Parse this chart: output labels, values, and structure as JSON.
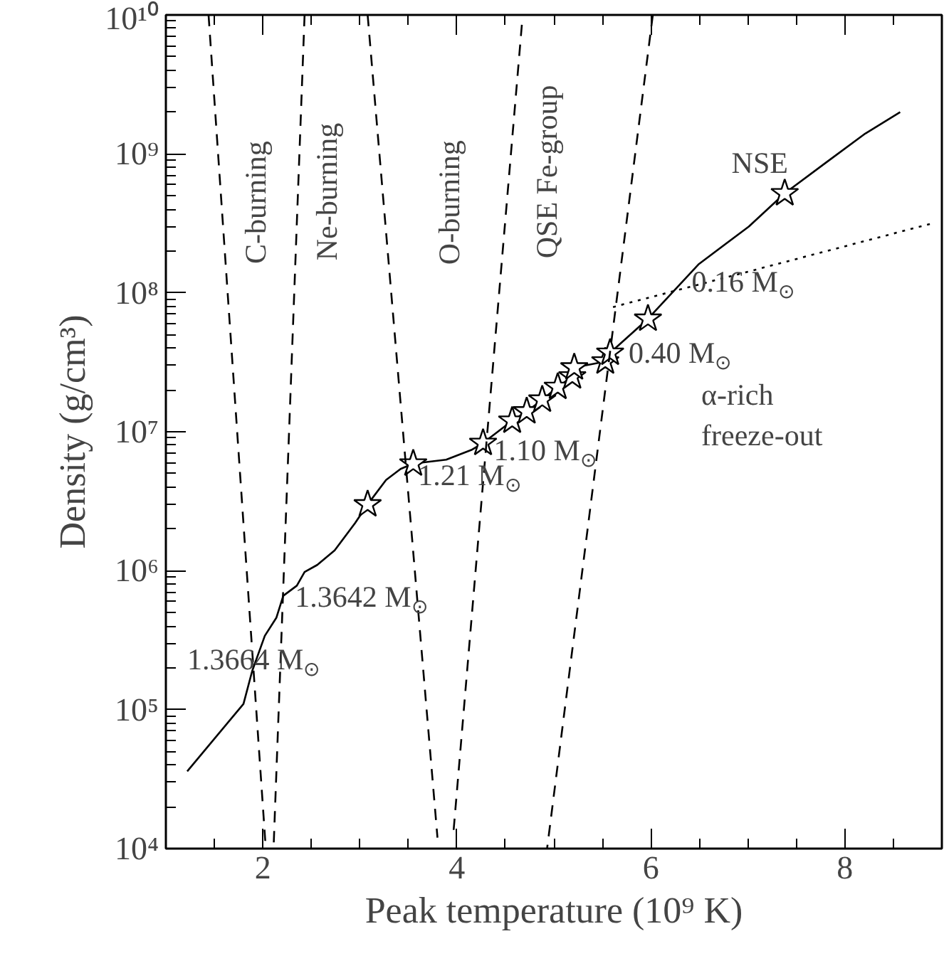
{
  "chart_data": {
    "type": "line",
    "xlabel": "Peak temperature (10⁹ K)",
    "ylabel": "Density (g/cm³)",
    "log": "y",
    "grid": false,
    "xlim": [
      1,
      9
    ],
    "xticks": [
      2,
      4,
      6,
      8
    ],
    "ylim": [
      10000,
      10000000000
    ],
    "yticks": [
      {
        "value": 10000,
        "label": "10⁴"
      },
      {
        "value": 100000,
        "label": "10⁵"
      },
      {
        "value": 1000000,
        "label": "10⁶"
      },
      {
        "value": 10000000,
        "label": "10⁷"
      },
      {
        "value": 100000000,
        "label": "10⁸"
      },
      {
        "value": 1000000000,
        "label": "10⁹"
      },
      {
        "value": 10000000000,
        "label": "10¹⁰"
      }
    ],
    "series": [
      {
        "type": "line",
        "color": "#000000",
        "line_style": "solid",
        "marker": "none",
        "x": [
          1.22,
          1.8,
          1.89,
          2.02,
          2.14,
          2.21,
          2.35,
          2.43,
          2.56,
          2.74,
          2.95,
          3.08,
          3.27,
          3.42,
          3.55,
          3.89,
          4.15,
          4.27,
          4.57,
          4.72,
          4.88,
          5.04,
          5.19,
          5.21,
          5.53,
          5.58,
          5.97,
          6.49,
          7.01,
          7.38,
          7.79,
          8.21,
          8.57
        ],
        "values": [
          36000.0,
          110000.0,
          190000.0,
          340000.0,
          460000.0,
          660000.0,
          780000.0,
          980000.0,
          1100000.0,
          1400000.0,
          2200000.0,
          3000000.0,
          4500000.0,
          5400000.0,
          5900000.0,
          6300000.0,
          7400000.0,
          8300000.0,
          12000000.0,
          14000000.0,
          17000000.0,
          21000000.0,
          25000000.0,
          29000000.0,
          32000000.0,
          37000000.0,
          65000000.0,
          160000000.0,
          300000000.0,
          520000000.0,
          850000000.0,
          1400000000.0,
          2000000000.0
        ]
      },
      {
        "type": "scatter",
        "color": "#000000",
        "marker": "star",
        "x": [
          3.08,
          3.55,
          4.27,
          4.57,
          4.72,
          4.88,
          5.04,
          5.19,
          5.21,
          5.53,
          5.58,
          5.97,
          7.38
        ],
        "values": [
          3000000.0,
          5900000.0,
          8300000.0,
          12000000.0,
          14000000.0,
          17000000.0,
          21000000.0,
          25000000.0,
          29000000.0,
          32000000.0,
          37000000.0,
          65000000.0,
          520000000.0
        ]
      },
      {
        "type": "line",
        "color": "#000000",
        "line_style": "dashed",
        "marker": "none",
        "x": [
          1.44,
          2.03
        ],
        "values": [
          10000000000.0,
          10000.0
        ]
      },
      {
        "type": "line",
        "color": "#000000",
        "line_style": "dashed",
        "marker": "none",
        "x": [
          2.43,
          2.11
        ],
        "values": [
          10000000000.0,
          10000.0
        ]
      },
      {
        "type": "line",
        "color": "#000000",
        "line_style": "dashed",
        "marker": "none",
        "x": [
          3.08,
          3.8
        ],
        "values": [
          10000000000.0,
          12000.0
        ]
      },
      {
        "type": "line",
        "color": "#000000",
        "line_style": "dashed",
        "marker": "none",
        "x": [
          4.67,
          3.96
        ],
        "values": [
          8500000000.0,
          12000.0
        ]
      },
      {
        "type": "line",
        "color": "#000000",
        "line_style": "dashed",
        "marker": "none",
        "x": [
          6.02,
          4.93
        ],
        "values": [
          10000000000.0,
          10000.0
        ]
      },
      {
        "type": "line",
        "color": "#000000",
        "line_style": "dotted",
        "marker": "none",
        "x": [
          5.61,
          8.93
        ],
        "values": [
          79000000.0,
          320000000.0
        ]
      }
    ],
    "annotations": [
      "C-burning",
      "Ne-burning",
      "O-burning",
      "QSE Fe-group",
      "NSE",
      {
        "text": "0.16 M$_{⊙}$",
        "x": 6.42,
        "y": 120000000.0
      },
      {
        "text": "0.40 M$_{⊙}$",
        "x": 5.77,
        "y": 37000000.0
      },
      "α-rich\nfreeze-out",
      {
        "text": "1.10 M$_{⊙}$",
        "x": 4.38,
        "y": 7400000.0
      },
      {
        "text": "1.21 M$_{⊙}$",
        "x": 3.6,
        "y": 4900000.0
      },
      {
        "text": "1.3642 M$_{⊙}$",
        "x": 2.33,
        "y": 650000.0
      },
      "1.3664 M$_{⊙}$"
    ]
  }
}
